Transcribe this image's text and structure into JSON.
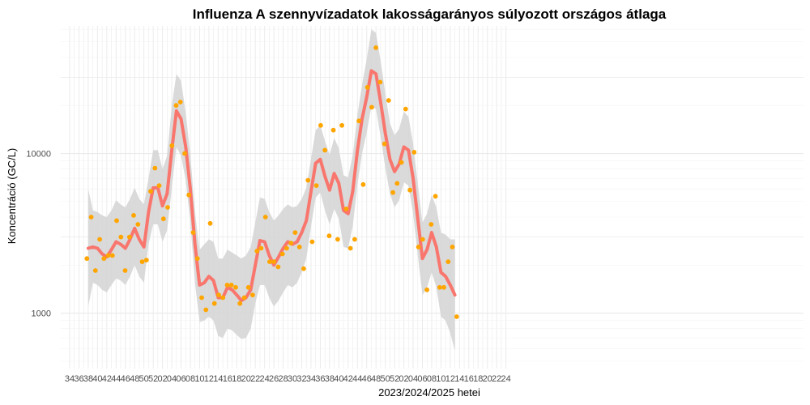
{
  "chart_data": {
    "type": "line",
    "title": "Influenza A szennyvízadatok lakosságarányos súlyozott országos átlaga",
    "xlabel": "2023/2024/2025 hetei",
    "ylabel": "Koncentráció (GC/L)",
    "y_scale": "log",
    "ylim": [
      450,
      63000
    ],
    "y_ticks": [
      1000,
      10000
    ],
    "y_tick_labels": [
      "1000",
      "10000"
    ],
    "x_tick_labels": [
      "34",
      "36",
      "38",
      "40",
      "42",
      "44",
      "46",
      "48",
      "50",
      "52",
      "02",
      "04",
      "06",
      "08",
      "10",
      "12",
      "14",
      "16",
      "18",
      "20",
      "22",
      "24",
      "26",
      "28",
      "30",
      "32",
      "34",
      "36",
      "38",
      "40",
      "42",
      "44",
      "46",
      "48",
      "50",
      "52",
      "02",
      "04",
      "06",
      "08",
      "10",
      "12",
      "14",
      "16",
      "18",
      "20",
      "22",
      "24"
    ],
    "grid": true,
    "legend": "none",
    "colors": {
      "smooth_line": "#f8766d",
      "points": "#ffa500",
      "ribbon": "#d3d3d3",
      "grid": "#ebebeb"
    },
    "series": [
      {
        "kind": "points",
        "values": [
          2200,
          4000,
          1850,
          2900,
          2200,
          2300,
          2300,
          3800,
          3000,
          1850,
          3000,
          4100,
          3600,
          2100,
          2150,
          5800,
          8100,
          6300,
          3900,
          4600,
          11200,
          20000,
          21000,
          10000,
          5500,
          3200,
          2200,
          1250,
          1050,
          3650,
          1150,
          1300,
          1250,
          1500,
          1500,
          1450,
          1150,
          1250,
          1450,
          1300,
          2450,
          2550,
          4000,
          2100,
          2100,
          1950,
          2350,
          2550,
          2750,
          3200,
          2600,
          1900,
          6800,
          2800,
          6300,
          15000,
          10500,
          3050,
          14000,
          2900,
          15000,
          4500,
          2550,
          2900,
          16000,
          6400,
          26000,
          19500,
          46000,
          28000,
          11500,
          21500,
          5700,
          6500,
          8800,
          19000,
          5900,
          10200,
          2600,
          2900,
          1400,
          3600,
          5400,
          1450,
          1450,
          2100,
          2600,
          950
        ]
      },
      {
        "kind": "smooth",
        "values": [
          2550,
          2600,
          2550,
          2350,
          2250,
          2500,
          2800,
          2700,
          2550,
          2900,
          3400,
          2900,
          2600,
          4300,
          6100,
          6100,
          4700,
          5600,
          10500,
          18500,
          16500,
          11000,
          6000,
          2700,
          1500,
          1550,
          1700,
          1600,
          1250,
          1250,
          1450,
          1400,
          1300,
          1200,
          1250,
          1400,
          2000,
          2850,
          2800,
          2300,
          2000,
          2250,
          2550,
          2800,
          2700,
          2800,
          3200,
          3800,
          5800,
          8700,
          9200,
          7200,
          5900,
          7500,
          6500,
          4400,
          4200,
          5800,
          10500,
          16500,
          22500,
          33000,
          31500,
          21000,
          13500,
          9200,
          7700,
          8600,
          11000,
          10500,
          7000,
          3900,
          2200,
          2500,
          3200,
          2600,
          1800,
          1700,
          1500,
          1300
        ],
        "upper": [
          6000,
          4400,
          4300,
          4100,
          4000,
          4400,
          5100,
          4800,
          4600,
          5200,
          6100,
          5200,
          4800,
          7000,
          10500,
          10500,
          8000,
          9700,
          20000,
          31500,
          28500,
          18000,
          9800,
          4300,
          2500,
          2700,
          2900,
          2800,
          2200,
          2200,
          2500,
          2400,
          2300,
          2200,
          2300,
          2600,
          3700,
          5300,
          5200,
          4300,
          3800,
          4100,
          4500,
          4800,
          4600,
          4700,
          5200,
          6100,
          9300,
          14000,
          15000,
          12000,
          9800,
          12500,
          10800,
          7300,
          7100,
          9800,
          17500,
          27000,
          39000,
          60000,
          57000,
          38000,
          24000,
          15500,
          13000,
          14300,
          18300,
          17000,
          11500,
          6500,
          3700,
          4200,
          5500,
          4600,
          3200,
          3100,
          2900,
          2900
        ],
        "lower": [
          1100,
          1550,
          1500,
          1400,
          1350,
          1500,
          1650,
          1600,
          1500,
          1700,
          2000,
          1700,
          1550,
          2700,
          3600,
          3600,
          2800,
          3300,
          6100,
          11000,
          9700,
          6800,
          3700,
          1550,
          880,
          900,
          950,
          900,
          720,
          700,
          800,
          780,
          730,
          690,
          700,
          800,
          1150,
          1500,
          1500,
          1250,
          1100,
          1200,
          1350,
          1500,
          1450,
          1550,
          1800,
          2200,
          3500,
          5300,
          5700,
          4400,
          3600,
          4500,
          3900,
          2600,
          2550,
          3500,
          6400,
          10000,
          13500,
          19700,
          19000,
          12700,
          8200,
          5600,
          4600,
          5100,
          6600,
          6300,
          4200,
          2300,
          1300,
          1450,
          1800,
          1450,
          950,
          900,
          750,
          580
        ]
      }
    ]
  }
}
